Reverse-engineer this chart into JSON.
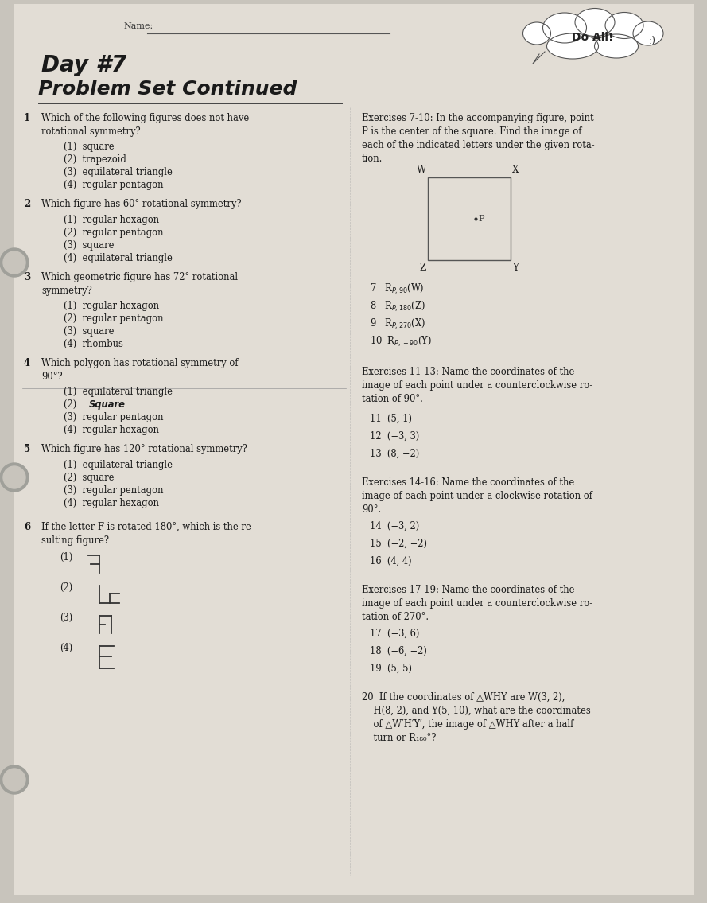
{
  "bg_color": "#c8c4bc",
  "paper_color": "#e2ddd5",
  "title_line1": "Day #7",
  "title_line2": "Problem Set Continued",
  "name_label": "Name:",
  "do_all_text": "Do All!",
  "left_questions": [
    {
      "num": "1",
      "text": "Which of the following figures does not have\nrotational symmetry?",
      "choices": [
        "(1)  square",
        "(2)  trapezoid",
        "(3)  equilateral triangle",
        "(4)  regular pentagon"
      ]
    },
    {
      "num": "2",
      "text": "Which figure has 60° rotational symmetry?",
      "choices": [
        "(1)  regular hexagon",
        "(2)  regular pentagon",
        "(3)  square",
        "(4)  equilateral triangle"
      ]
    },
    {
      "num": "3",
      "text": "Which geometric figure has 72° rotational\nsymmetry?",
      "choices": [
        "(1)  regular hexagon",
        "(2)  regular pentagon",
        "(3)  square",
        "(4)  rhombus"
      ]
    },
    {
      "num": "4",
      "text": "Which polygon has rotational symmetry of\n90°?",
      "choices": [
        "(1)  equilateral triangle",
        "(2)  Square",
        "(3)  regular pentagon",
        "(4)  regular hexagon"
      ]
    },
    {
      "num": "5",
      "text": "Which figure has 120° rotational symmetry?",
      "choices": [
        "(1)  equilateral triangle",
        "(2)  square",
        "(3)  regular pentagon",
        "(4)  regular hexagon"
      ]
    }
  ],
  "q6_text": "If the letter F is rotated 180°, which is the re-\nsulting figure?",
  "ex7_10_header": "Exercises 7-10: In the accompanying figure, point\nP is the center of the square. Find the image of\neach of the indicated letters under the given rota-\ntion.",
  "q7_10": [
    "7  R_{P,90}(W)",
    "8  R_{P,180}(Z)",
    "9  R_{P,270}(X)",
    "10  R_{P,-90}(Y)"
  ],
  "ex11_13_header": "Exercises 11-13: Name the coordinates of the\nimage of each point under a counterclockwise ro-\ntation of 90°.",
  "q11_13": [
    "11  (5, 1)",
    "12  (−3, 3)",
    "13  (8, −2)"
  ],
  "ex14_16_header": "Exercises 14-16: Name the coordinates of the\nimage of each point under a clockwise rotation of\n90°.",
  "q14_16": [
    "14  (−3, 2)",
    "15  (−2, −2)",
    "16  (4, 4)"
  ],
  "ex17_19_header": "Exercises 17-19: Name the coordinates of the\nimage of each point under a counterclockwise ro-\ntation of 270°.",
  "q17_19": [
    "17  (−3, 6)",
    "18  (−6, −2)",
    "19  (5, 5)"
  ],
  "q20_text": "20  If the coordinates of △WHY are W(3, 2),\n    H(8, 2), and Y(5, 10), what are the coordinates\n    of △W′H′Y′, the image of △WHY after a half\n    turn or R_{180}°?"
}
